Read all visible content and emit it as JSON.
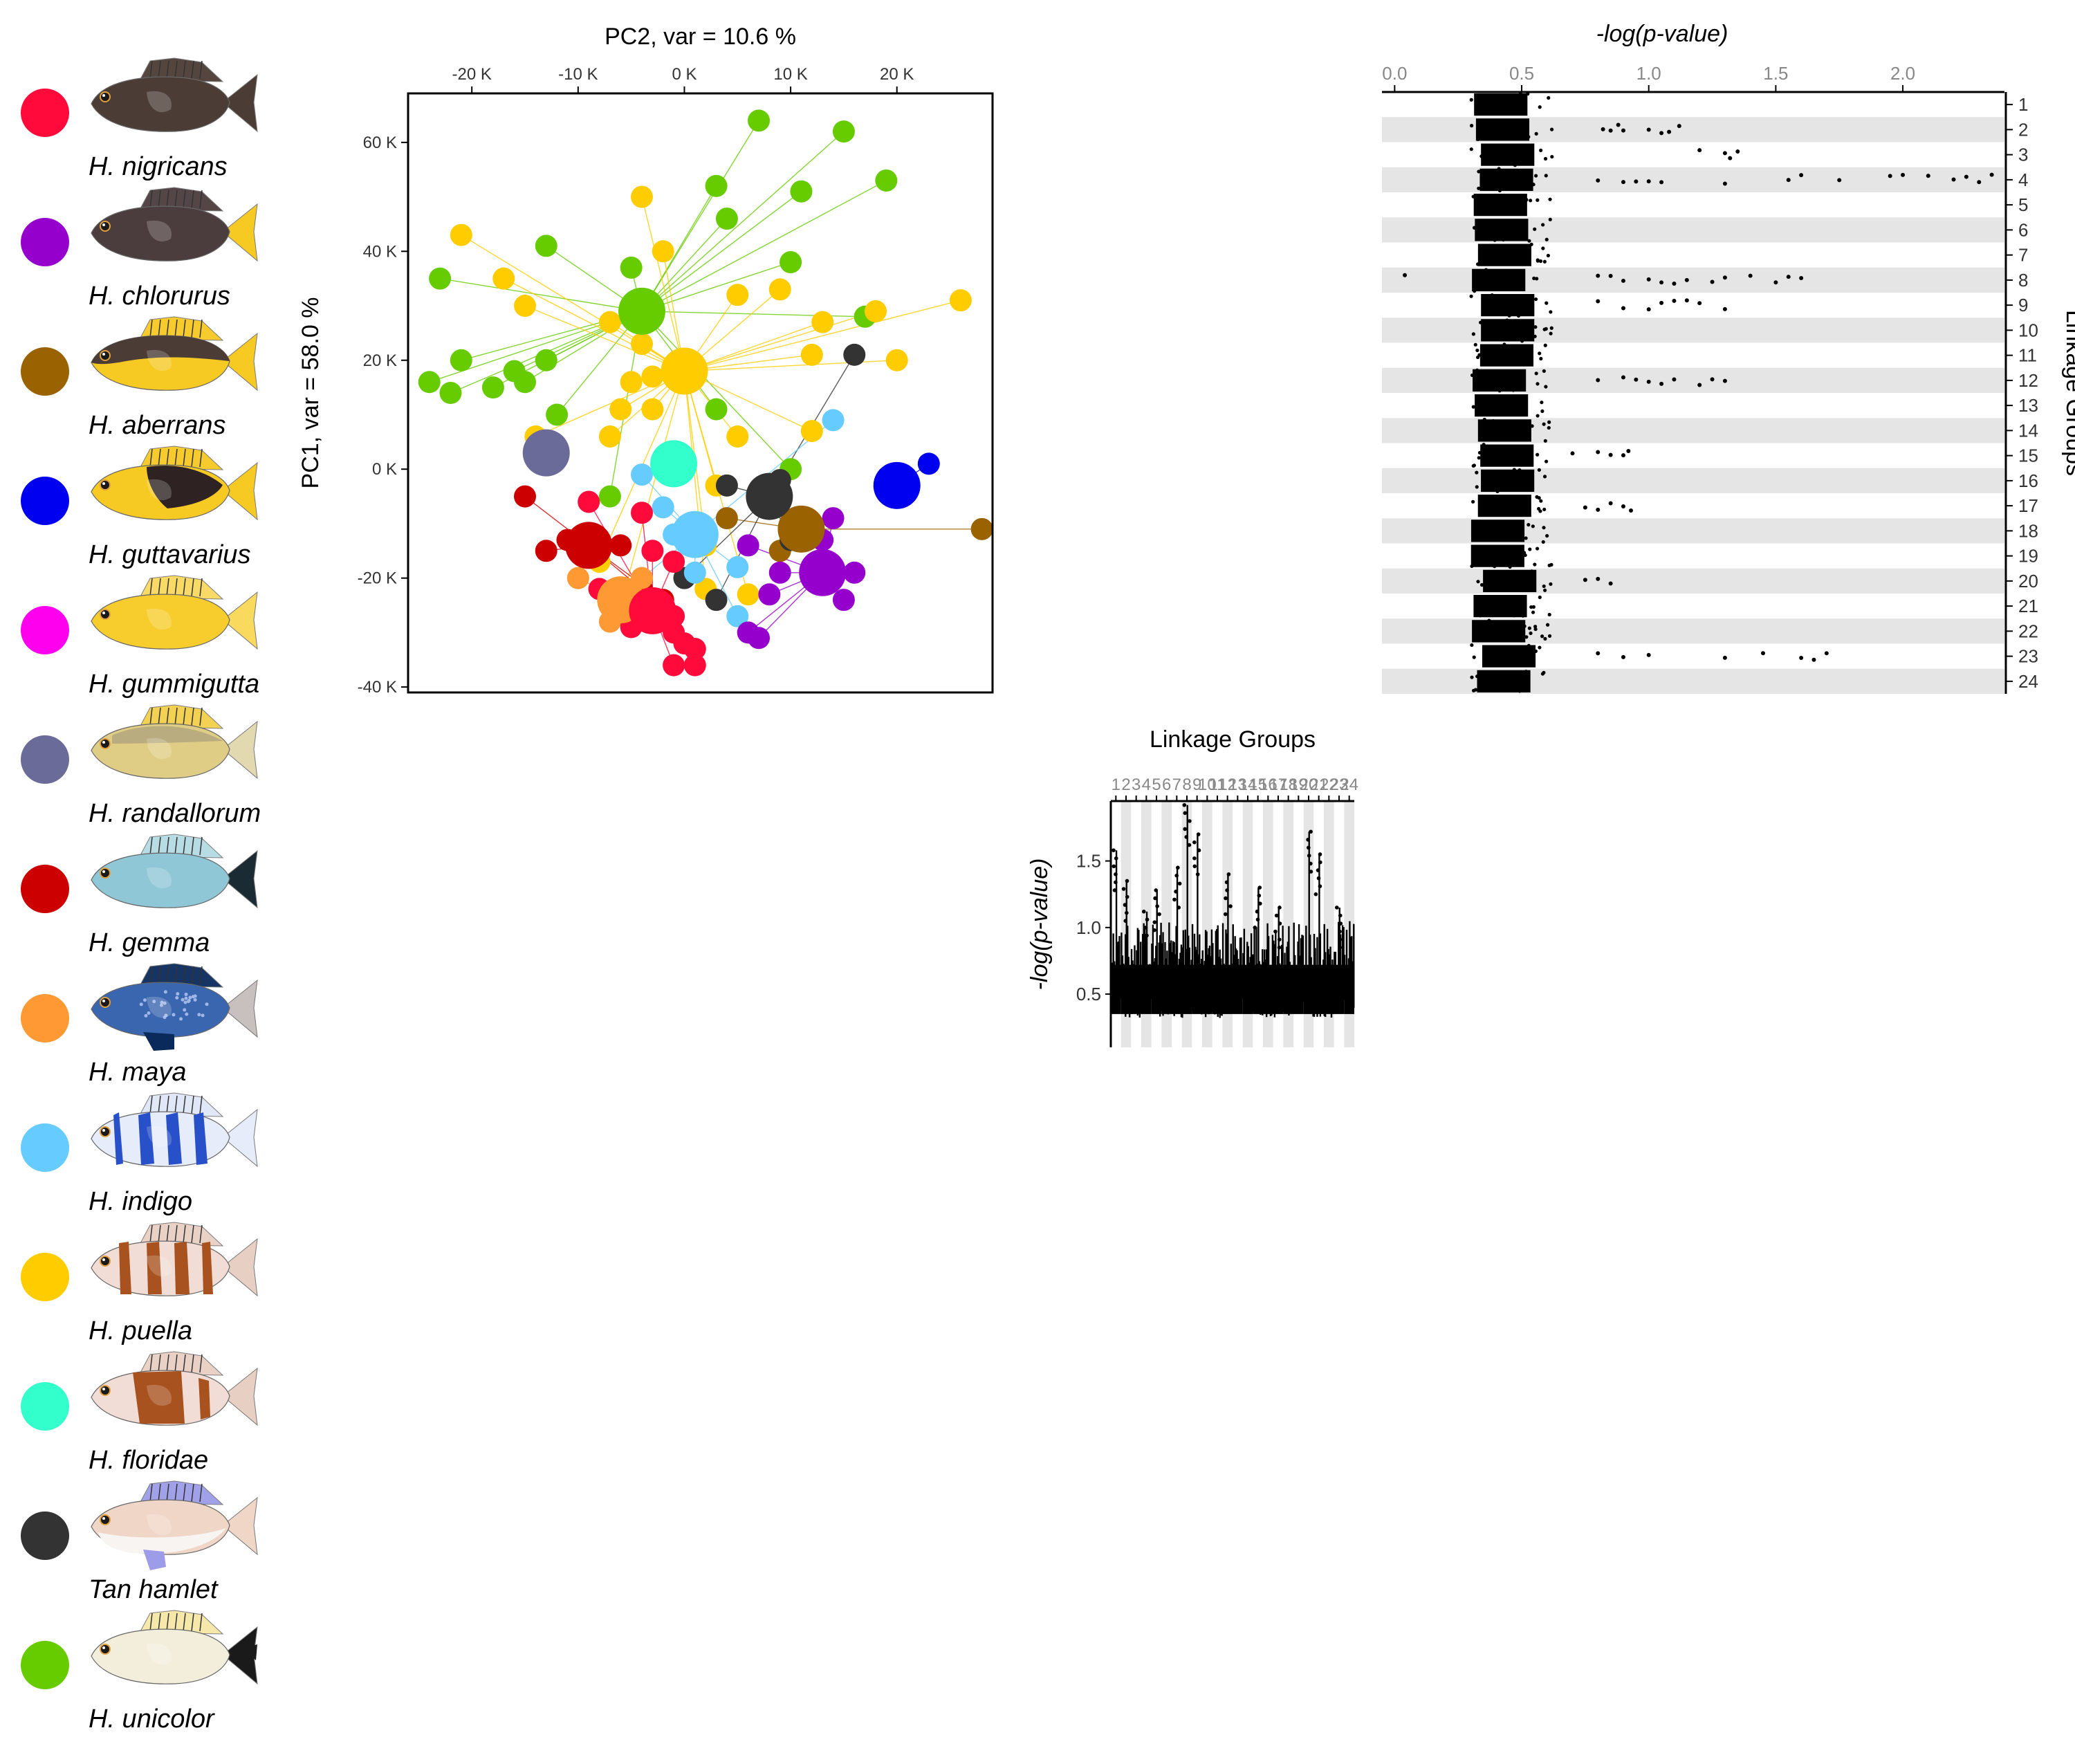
{
  "legend": [
    {
      "name": "H. nigricans",
      "color": "#ff0a3a",
      "fish": {
        "body": "#4b3d35",
        "fin": "#4b3d35",
        "tail": "#4b3d35",
        "pattern": "plain"
      }
    },
    {
      "name": "H. chlorurus",
      "color": "#9500cc",
      "fish": {
        "body": "#4b3d3d",
        "fin": "#4b3d3d",
        "tail": "#f7c923",
        "pattern": "plain"
      }
    },
    {
      "name": "H. aberrans",
      "color": "#9a6200",
      "fish": {
        "body": "#f7c923",
        "fin": "#f7c923",
        "tail": "#f7c923",
        "pattern": "dark-top"
      }
    },
    {
      "name": "H. guttavarius",
      "color": "#0000f0",
      "fish": {
        "body": "#f7c923",
        "fin": "#f7c923",
        "tail": "#f7c923",
        "pattern": "dark-saddle"
      }
    },
    {
      "name": "H. gummigutta",
      "color": "#ff00ee",
      "fish": {
        "body": "#f7cd2e",
        "fin": "#f9d95e",
        "tail": "#f9d95e",
        "pattern": "plain"
      }
    },
    {
      "name": "H. randallorum",
      "color": "#6b6b99",
      "fish": {
        "body": "#e0cd85",
        "fin": "#f2cf4a",
        "tail": "#e2d9b0",
        "pattern": "grey-top"
      }
    },
    {
      "name": "H. gemma",
      "color": "#cc0000",
      "fish": {
        "body": "#8fc7d6",
        "fin": "#b5dbe3",
        "tail": "#1a2b33",
        "pattern": "plain"
      }
    },
    {
      "name": "H. maya",
      "color": "#ff9933",
      "fish": {
        "body": "#3a66b0",
        "fin": "#0a2a5c",
        "tail": "#c8bfbf",
        "pattern": "dots"
      }
    },
    {
      "name": "H. indigo",
      "color": "#66ccff",
      "fish": {
        "body": "#e6ecfa",
        "fin": "#dfe6f7",
        "tail": "#e6ecfa",
        "pattern": "blue-bars"
      }
    },
    {
      "name": "H. puella",
      "color": "#ffcc00",
      "fish": {
        "body": "#f1ddd5",
        "fin": "#e8cfc4",
        "tail": "#e8cfc4",
        "pattern": "brown-bars"
      }
    },
    {
      "name": "H. floridae",
      "color": "#33ffcc",
      "fish": {
        "body": "#f1ddd5",
        "fin": "#e8cfc4",
        "tail": "#e8cfc4",
        "pattern": "brown-block"
      }
    },
    {
      "name": "Tan hamlet",
      "color": "#333333",
      "fish": {
        "body": "#f0d6c6",
        "fin": "#9c9ce8",
        "tail": "#f0d6c6",
        "pattern": "tan"
      }
    },
    {
      "name": "H. unicolor",
      "color": "#66cc00",
      "fish": {
        "body": "#f3eedc",
        "fin": "#f5e7a6",
        "tail": "#1a1a1a",
        "pattern": "unicolor"
      }
    }
  ],
  "chart_data": [
    {
      "type": "scatter",
      "title": "PC2, var = 10.6 %",
      "xlabel": "PC2, var = 10.6 %",
      "ylabel": "PC1, var =  58.0 %",
      "xlim": [
        -26000,
        29000
      ],
      "ylim": [
        -41000,
        69000
      ],
      "xticks": [
        -20000,
        -10000,
        0,
        10000,
        20000
      ],
      "xtick_labels": [
        "-20 K",
        "-10 K",
        "0 K",
        "10 K",
        "20 K"
      ],
      "yticks": [
        60000,
        40000,
        20000,
        0,
        -20000,
        -40000
      ],
      "ytick_labels": [
        "60 K",
        "40 K",
        "20 K",
        "0 K",
        "-20 K",
        "-40 K"
      ],
      "x_axis_position": "top",
      "series": [
        {
          "name": "H. unicolor",
          "color": "#66cc00",
          "centroid": [
            -4000,
            29000
          ],
          "points": [
            [
              7000,
              64000
            ],
            [
              15000,
              62000
            ],
            [
              19000,
              53000
            ],
            [
              3000,
              52000
            ],
            [
              11000,
              51000
            ],
            [
              4000,
              46000
            ],
            [
              10000,
              38000
            ],
            [
              17000,
              28000
            ],
            [
              -13000,
              41000
            ],
            [
              -23000,
              35000
            ],
            [
              -5000,
              37000
            ],
            [
              -21000,
              20000
            ],
            [
              -16000,
              18000
            ],
            [
              -13000,
              20000
            ],
            [
              -15000,
              16000
            ],
            [
              -18000,
              15000
            ],
            [
              -22000,
              14000
            ],
            [
              -24000,
              16000
            ],
            [
              -12000,
              10000
            ],
            [
              3000,
              11000
            ],
            [
              10000,
              0
            ],
            [
              -7000,
              -5000
            ]
          ]
        },
        {
          "name": "H. puella",
          "color": "#ffcc00",
          "centroid": [
            0,
            18000
          ],
          "points": [
            [
              -4000,
              50000
            ],
            [
              -2000,
              40000
            ],
            [
              -21000,
              43000
            ],
            [
              -17000,
              35000
            ],
            [
              -15000,
              30000
            ],
            [
              -7000,
              27000
            ],
            [
              5000,
              32000
            ],
            [
              9000,
              33000
            ],
            [
              13000,
              27000
            ],
            [
              18000,
              29000
            ],
            [
              26000,
              31000
            ],
            [
              12000,
              21000
            ],
            [
              20000,
              20000
            ],
            [
              -4000,
              23000
            ],
            [
              -3000,
              17000
            ],
            [
              -5000,
              16000
            ],
            [
              -6000,
              11000
            ],
            [
              -3000,
              11000
            ],
            [
              -7000,
              6000
            ],
            [
              -14000,
              6000
            ],
            [
              5000,
              6000
            ],
            [
              12000,
              7000
            ],
            [
              3000,
              -3000
            ],
            [
              2000,
              -14000
            ],
            [
              -8000,
              -17000
            ],
            [
              -6000,
              -25000
            ],
            [
              2000,
              -22000
            ],
            [
              6000,
              -23000
            ]
          ]
        },
        {
          "name": "H. guttavarius",
          "color": "#0000f0",
          "centroid": [
            20000,
            -3000
          ],
          "points": [
            [
              23000,
              1000
            ]
          ]
        },
        {
          "name": "H. aberrans",
          "color": "#9a6200",
          "centroid": [
            11000,
            -11000
          ],
          "points": [
            [
              28000,
              -11000
            ],
            [
              4000,
              -9000
            ],
            [
              9000,
              -15000
            ]
          ]
        },
        {
          "name": "Tan hamlet",
          "color": "#333333",
          "centroid": [
            8000,
            -5000
          ],
          "points": [
            [
              16000,
              21000
            ],
            [
              4000,
              -3000
            ],
            [
              9000,
              -2000
            ],
            [
              10000,
              -13000
            ],
            [
              3000,
              -24000
            ],
            [
              0,
              -20000
            ]
          ]
        },
        {
          "name": "H. floridae",
          "color": "#33ffcc",
          "centroid": [
            -1000,
            1000
          ],
          "points": []
        },
        {
          "name": "H. indigo",
          "color": "#66ccff",
          "centroid": [
            1000,
            -12000
          ],
          "points": [
            [
              14000,
              9000
            ],
            [
              -4000,
              -1000
            ],
            [
              -2000,
              -7000
            ],
            [
              -1000,
              -12000
            ],
            [
              5000,
              -18000
            ],
            [
              1000,
              -19000
            ],
            [
              5000,
              -27000
            ],
            [
              -4000,
              -20000
            ]
          ]
        },
        {
          "name": "H. randallorum",
          "color": "#6b6b99",
          "centroid": [
            -13000,
            3000
          ],
          "points": []
        },
        {
          "name": "H. gemma",
          "color": "#cc0000",
          "centroid": [
            -9000,
            -14000
          ],
          "points": [
            [
              -15000,
              -5000
            ],
            [
              -11000,
              -13000
            ],
            [
              -13000,
              -15000
            ],
            [
              -6000,
              -14000
            ],
            [
              -4000,
              -22000
            ],
            [
              -2000,
              -24000
            ]
          ]
        },
        {
          "name": "H. maya",
          "color": "#ff9933",
          "centroid": [
            -6000,
            -24000
          ],
          "points": [
            [
              -10000,
              -20000
            ],
            [
              -4000,
              -20000
            ],
            [
              -7000,
              -28000
            ]
          ]
        },
        {
          "name": "H. nigricans",
          "color": "#ff0a3a",
          "centroid": [
            -3000,
            -26000
          ],
          "points": [
            [
              -8000,
              -22000
            ],
            [
              -4000,
              -8000
            ],
            [
              -3000,
              -15000
            ],
            [
              -1000,
              -17000
            ],
            [
              -5000,
              -29000
            ],
            [
              -1000,
              -30000
            ],
            [
              0,
              -32000
            ],
            [
              1000,
              -33000
            ],
            [
              1000,
              -36000
            ],
            [
              -1000,
              -36000
            ],
            [
              -6000,
              -25000
            ],
            [
              -1000,
              -27000
            ],
            [
              -2000,
              -26000
            ],
            [
              -9000,
              -6000
            ]
          ]
        },
        {
          "name": "H. chlorurus",
          "color": "#9500cc",
          "centroid": [
            13000,
            -19000
          ],
          "points": [
            [
              14000,
              -9000
            ],
            [
              9000,
              -19000
            ],
            [
              8000,
              -23000
            ],
            [
              16000,
              -19000
            ],
            [
              15000,
              -24000
            ],
            [
              6000,
              -30000
            ],
            [
              7000,
              -31000
            ],
            [
              13000,
              -13000
            ],
            [
              6000,
              -14000
            ]
          ]
        }
      ]
    },
    {
      "type": "scatter",
      "title": "-log(p-value)",
      "xlabel": "-log(p-value)",
      "ylabel": "Linkage Groups",
      "xlim": [
        -0.05,
        2.4
      ],
      "xticks": [
        0.0,
        0.5,
        1.0,
        1.5,
        2.0
      ],
      "xtick_labels": [
        "0.0",
        "0.5",
        "1.0",
        "1.5",
        "2.0"
      ],
      "ytick_labels": [
        "1",
        "2",
        "3",
        "4",
        "5",
        "6",
        "7",
        "8",
        "9",
        "10",
        "11",
        "12",
        "13",
        "14",
        "15",
        "16",
        "17",
        "18",
        "19",
        "20",
        "21",
        "22",
        "23",
        "24"
      ],
      "x_axis_position": "top",
      "y_axis_position": "right",
      "bulk_range": [
        0.3,
        0.62
      ],
      "outliers": [
        {
          "lg": 2,
          "values": [
            0.82,
            0.85,
            0.88,
            0.9,
            1.0,
            1.05,
            1.08,
            1.12
          ]
        },
        {
          "lg": 3,
          "values": [
            1.2,
            1.3,
            1.32,
            1.35
          ]
        },
        {
          "lg": 4,
          "values": [
            0.8,
            0.9,
            0.95,
            1.0,
            1.05,
            1.3,
            1.55,
            1.6,
            1.75,
            1.95,
            2.0,
            2.1,
            2.2,
            2.25,
            2.3,
            2.35
          ]
        },
        {
          "lg": 8,
          "values": [
            0.04,
            0.8,
            0.85,
            0.9,
            1.0,
            1.05,
            1.1,
            1.15,
            1.25,
            1.3,
            1.4,
            1.5,
            1.55,
            1.6
          ]
        },
        {
          "lg": 9,
          "values": [
            0.8,
            0.9,
            1.0,
            1.05,
            1.1,
            1.15,
            1.2,
            1.3
          ]
        },
        {
          "lg": 12,
          "values": [
            0.8,
            0.9,
            0.95,
            1.0,
            1.05,
            1.1,
            1.2,
            1.25,
            1.3
          ]
        },
        {
          "lg": 15,
          "values": [
            0.7,
            0.8,
            0.85,
            0.9,
            0.92
          ]
        },
        {
          "lg": 17,
          "values": [
            0.75,
            0.8,
            0.85,
            0.9,
            0.93
          ]
        },
        {
          "lg": 20,
          "values": [
            0.75,
            0.8,
            0.85
          ]
        },
        {
          "lg": 23,
          "values": [
            0.8,
            0.9,
            1.0,
            1.3,
            1.45,
            1.6,
            1.65,
            1.7
          ]
        }
      ]
    },
    {
      "type": "line",
      "title": "Linkage Groups",
      "xlabel": "Linkage Groups",
      "ylabel": "-log(p-value)",
      "ylim": [
        0.1,
        1.95
      ],
      "yticks": [
        0.5,
        1.0,
        1.5
      ],
      "ytick_labels": [
        "0.5",
        "1.0",
        "1.5"
      ],
      "x_categories": [
        "1",
        "2",
        "3",
        "4",
        "5",
        "6",
        "7",
        "8",
        "9",
        "10",
        "11",
        "12",
        "13",
        "14",
        "15",
        "16",
        "17",
        "18",
        "19",
        "20",
        "21",
        "22",
        "23",
        "24"
      ],
      "x_axis_position": "top",
      "peaks": [
        {
          "lg": 1,
          "value": 1.58
        },
        {
          "lg": 2,
          "value": 1.35
        },
        {
          "lg": 4,
          "value": 1.12
        },
        {
          "lg": 5,
          "value": 1.28
        },
        {
          "lg": 7,
          "value": 1.45
        },
        {
          "lg": 8,
          "value": 1.92
        },
        {
          "lg": 9,
          "value": 1.7
        },
        {
          "lg": 12,
          "value": 1.4
        },
        {
          "lg": 15,
          "value": 1.3
        },
        {
          "lg": 17,
          "value": 1.15
        },
        {
          "lg": 20,
          "value": 1.72
        },
        {
          "lg": 21,
          "value": 1.55
        },
        {
          "lg": 23,
          "value": 1.15
        }
      ]
    }
  ]
}
